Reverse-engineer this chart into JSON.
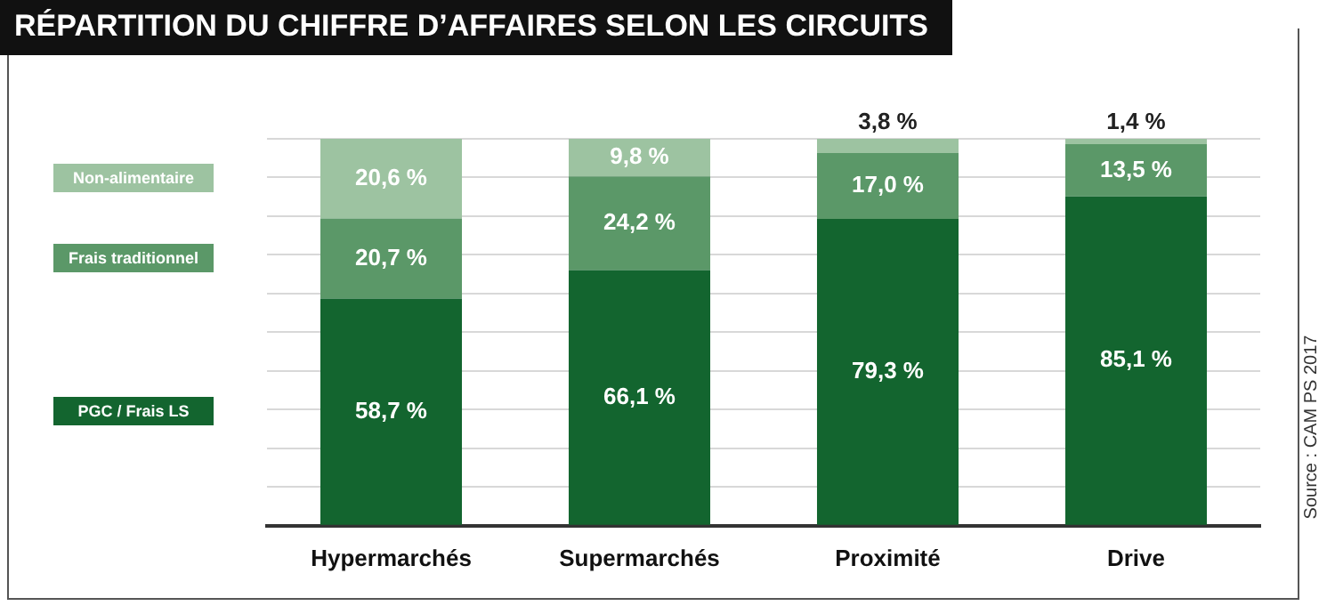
{
  "chart_data": {
    "type": "bar",
    "title": "RÉPARTITION DU CHIFFRE D’AFFAIRES SELON LES CIRCUITS",
    "stacked": true,
    "categories": [
      "Hypermarchés",
      "Supermarchés",
      "Proximité",
      "Drive"
    ],
    "series": [
      {
        "name": "PGC / Frais LS",
        "color": "#13652f",
        "values": [
          58.7,
          66.1,
          79.3,
          85.1
        ],
        "value_labels": [
          "58,7 %",
          "66,1 %",
          "79,3 %",
          "85,1 %"
        ]
      },
      {
        "name": "Frais traditionnel",
        "color": "#5b9868",
        "values": [
          20.7,
          24.2,
          17.0,
          13.5
        ],
        "value_labels": [
          "20,7 %",
          "24,2 %",
          "17,0 %",
          "13,5 %"
        ]
      },
      {
        "name": "Non-alimentaire",
        "color": "#9dc3a1",
        "values": [
          20.6,
          9.8,
          3.8,
          1.4
        ],
        "value_labels": [
          "20,6 %",
          "9,8 %",
          "3,8 %",
          "1,4 %"
        ]
      }
    ],
    "ylim": [
      0,
      100
    ],
    "yticks": [
      {
        "value": 0,
        "label": null
      },
      {
        "value": 10,
        "label": null
      },
      {
        "value": 20,
        "label": null
      },
      {
        "value": 30,
        "label": null
      },
      {
        "value": 40,
        "label": null
      },
      {
        "value": 50,
        "label": null
      },
      {
        "value": 60,
        "label": null
      },
      {
        "value": 70,
        "label": null
      },
      {
        "value": 80,
        "label": null
      },
      {
        "value": 90,
        "label": null
      },
      {
        "value": 100,
        "label": null
      }
    ],
    "tick_labels": "x",
    "grid": "y",
    "legend": "left",
    "annotations": [
      "Source : CAM PS 2017"
    ]
  }
}
